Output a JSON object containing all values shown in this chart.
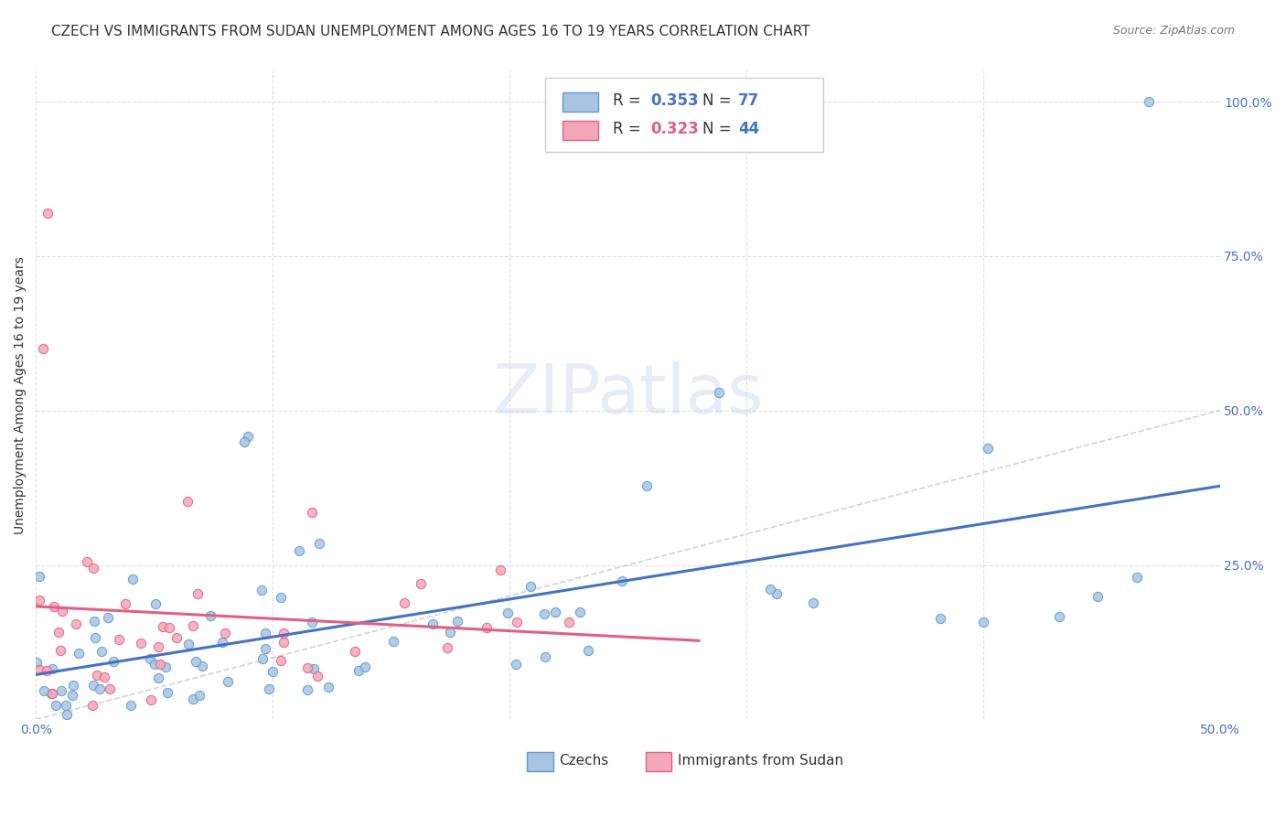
{
  "title": "CZECH VS IMMIGRANTS FROM SUDAN UNEMPLOYMENT AMONG AGES 16 TO 19 YEARS CORRELATION CHART",
  "source": "Source: ZipAtlas.com",
  "ylabel": "Unemployment Among Ages 16 to 19 years",
  "xlim": [
    0.0,
    0.5
  ],
  "ylim": [
    0.0,
    1.05
  ],
  "xtick_positions": [
    0.0,
    0.1,
    0.2,
    0.3,
    0.4,
    0.5
  ],
  "xtick_labels": [
    "0.0%",
    "",
    "",
    "",
    "",
    "50.0%"
  ],
  "ytick_positions": [
    0.0,
    0.25,
    0.5,
    0.75,
    1.0
  ],
  "ytick_labels_right": [
    "",
    "25.0%",
    "50.0%",
    "75.0%",
    "100.0%"
  ],
  "czech_color": "#a8c4e0",
  "czech_edge_color": "#5b9bd5",
  "sudan_color": "#f4a7b9",
  "sudan_edge_color": "#e06080",
  "trend_color_czech": "#4472c4",
  "trend_color_sudan": "#e06080",
  "diagonal_color": "#c0c0c0",
  "legend_czech_R": "0.353",
  "legend_czech_N": "77",
  "legend_sudan_R": "0.323",
  "legend_sudan_N": "44",
  "watermark": "ZIPatlas",
  "background_color": "#ffffff",
  "grid_color": "#dddddd",
  "title_fontsize": 11,
  "axis_fontsize": 10,
  "tick_fontsize": 10,
  "tick_color": "#4472c4"
}
